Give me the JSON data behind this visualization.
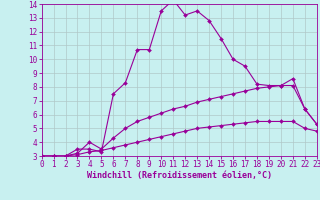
{
  "xlabel": "Windchill (Refroidissement éolien,°C)",
  "background_color": "#c8f0f0",
  "line_color": "#990099",
  "grid_color": "#b0c8c8",
  "xlim": [
    0,
    23
  ],
  "ylim": [
    3,
    14
  ],
  "xticks": [
    0,
    1,
    2,
    3,
    4,
    5,
    6,
    7,
    8,
    9,
    10,
    11,
    12,
    13,
    14,
    15,
    16,
    17,
    18,
    19,
    20,
    21,
    22,
    23
  ],
  "yticks": [
    3,
    4,
    5,
    6,
    7,
    8,
    9,
    10,
    11,
    12,
    13,
    14
  ],
  "curve1_x": [
    0,
    1,
    2,
    3,
    4,
    5,
    6,
    7,
    8,
    9,
    10,
    11,
    12,
    13,
    14,
    15,
    16,
    17,
    18,
    19,
    20,
    21,
    22,
    23
  ],
  "curve1_y": [
    3.0,
    3.0,
    3.0,
    3.5,
    3.5,
    3.3,
    7.5,
    8.3,
    10.7,
    10.7,
    13.5,
    14.3,
    13.2,
    13.5,
    12.8,
    11.5,
    10.0,
    9.5,
    8.2,
    8.1,
    8.1,
    8.6,
    6.4,
    5.3
  ],
  "curve2_x": [
    0,
    1,
    2,
    3,
    4,
    5,
    6,
    7,
    8,
    9,
    10,
    11,
    12,
    13,
    14,
    15,
    16,
    17,
    18,
    19,
    20,
    21,
    22,
    23
  ],
  "curve2_y": [
    3.0,
    3.0,
    3.0,
    3.2,
    4.0,
    3.5,
    4.3,
    5.0,
    5.5,
    5.8,
    6.1,
    6.4,
    6.6,
    6.9,
    7.1,
    7.3,
    7.5,
    7.7,
    7.9,
    8.0,
    8.1,
    8.1,
    6.4,
    5.3
  ],
  "curve3_x": [
    0,
    1,
    2,
    3,
    4,
    5,
    6,
    7,
    8,
    9,
    10,
    11,
    12,
    13,
    14,
    15,
    16,
    17,
    18,
    19,
    20,
    21,
    22,
    23
  ],
  "curve3_y": [
    3.0,
    3.0,
    3.0,
    3.1,
    3.3,
    3.4,
    3.6,
    3.8,
    4.0,
    4.2,
    4.4,
    4.6,
    4.8,
    5.0,
    5.1,
    5.2,
    5.3,
    5.4,
    5.5,
    5.5,
    5.5,
    5.5,
    5.0,
    4.8
  ],
  "marker": "D",
  "markersize": 2.0,
  "linewidth": 0.8,
  "tick_fontsize": 5.5,
  "xlabel_fontsize": 6.0
}
